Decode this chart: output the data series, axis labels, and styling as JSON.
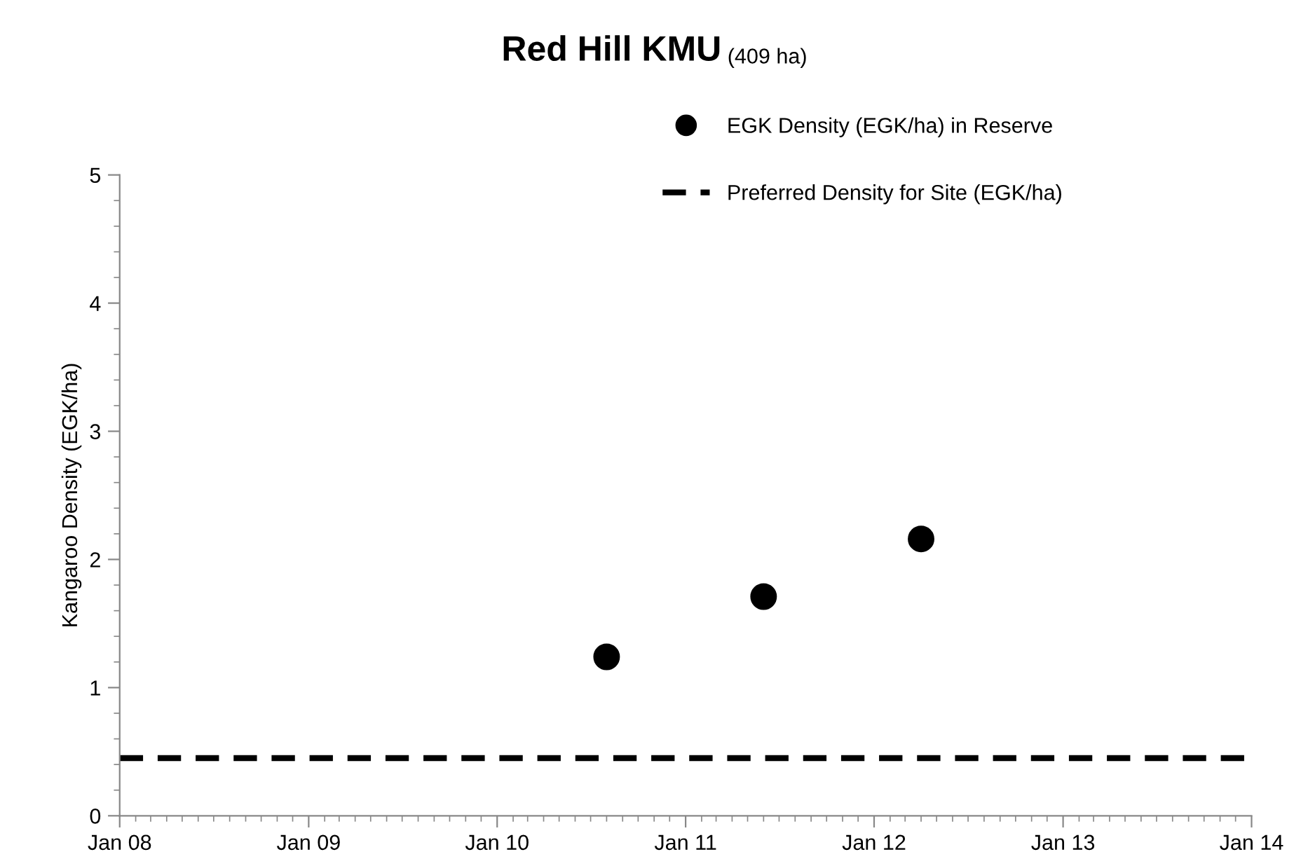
{
  "chart_data": {
    "type": "scatter",
    "title": "Red Hill KMU",
    "subtitle": "(409 ha)",
    "ylabel": "Kangaroo Density (EGK/ha)",
    "series": [
      {
        "name": "EGK Density (EGK/ha) in Reserve",
        "color": "#000000",
        "x": [
          "2010-08",
          "2011-06",
          "2012-04"
        ],
        "values": [
          1.24,
          1.71,
          2.16
        ]
      }
    ],
    "ref_lines": [
      {
        "axis": "y",
        "value": 0.45,
        "label": "Preferred Density for Site (EGK/ha)",
        "color": "#000000",
        "line_style": "dashed"
      }
    ],
    "xlim": [
      "2008-01",
      "2014-01"
    ],
    "xticks": [
      {
        "value": "2008-01",
        "label": "Jan 08"
      },
      {
        "value": "2009-01",
        "label": "Jan 09"
      },
      {
        "value": "2010-01",
        "label": "Jan 10"
      },
      {
        "value": "2011-01",
        "label": "Jan 11"
      },
      {
        "value": "2012-01",
        "label": "Jan 12"
      },
      {
        "value": "2013-01",
        "label": "Jan 13"
      },
      {
        "value": "2014-01",
        "label": "Jan 14"
      }
    ],
    "ylim": [
      0,
      5
    ],
    "yticks": [
      0,
      1,
      2,
      3,
      4,
      5
    ],
    "marker": "circle",
    "grid": false,
    "legend": "top right"
  }
}
